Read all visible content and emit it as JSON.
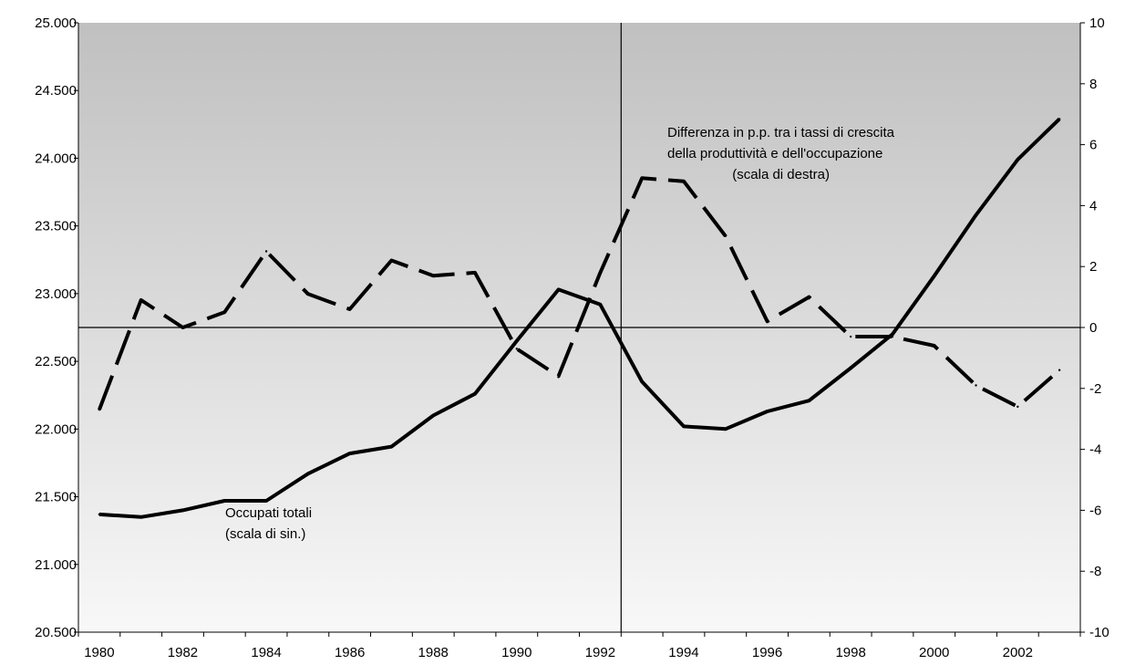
{
  "chart_data": {
    "type": "line",
    "title": "",
    "xlabel": "",
    "ylabel": "",
    "x": [
      1980,
      1981,
      1982,
      1983,
      1984,
      1985,
      1986,
      1987,
      1988,
      1989,
      1990,
      1991,
      1992,
      1993,
      1994,
      1995,
      1996,
      1997,
      1998,
      1999,
      2000,
      2001,
      2002,
      2003
    ],
    "x_tick_labels": [
      "1980",
      "1982",
      "1984",
      "1986",
      "1988",
      "1990",
      "1992",
      "1994",
      "1996",
      "1998",
      "2000",
      "2002"
    ],
    "ylim_left": [
      20500,
      25000
    ],
    "ylim_right": [
      -10,
      10
    ],
    "y_left_tick_labels": [
      "20.500",
      "21.000",
      "21.500",
      "22.000",
      "22.500",
      "23.000",
      "23.500",
      "24.000",
      "24.500",
      "25.000"
    ],
    "y_right_tick_labels": [
      "-10",
      "-8",
      "-6",
      "-4",
      "-2",
      "0",
      "2",
      "4",
      "6",
      "8",
      "10"
    ],
    "grid": false,
    "reference_lines": {
      "horizontal_right_axis_value": 0,
      "vertical_between_years": [
        1992,
        1993
      ]
    },
    "series": [
      {
        "axis": "left",
        "style": "solid",
        "color": "#000000",
        "values": [
          21370,
          21350,
          21400,
          21470,
          21470,
          21670,
          21820,
          21870,
          22100,
          22260,
          22650,
          23030,
          22920,
          22350,
          22020,
          22000,
          22130,
          22210,
          22450,
          22700,
          23130,
          23580,
          23990,
          24290
        ]
      },
      {
        "axis": "right",
        "style": "dashed",
        "color": "#000000",
        "values": [
          -2.7,
          0.9,
          0.0,
          0.5,
          2.5,
          1.1,
          0.6,
          2.2,
          1.7,
          1.8,
          -0.7,
          -1.6,
          1.8,
          4.9,
          4.8,
          3.0,
          0.2,
          1.0,
          -0.3,
          -0.3,
          -0.6,
          -1.9,
          -2.6,
          -1.4
        ]
      }
    ],
    "annotations": {
      "dashed_series": [
        "Differenza in p.p. tra i tassi di crescita",
        "della produttività e dell'occupazione",
        "(scala di destra)"
      ],
      "solid_series": [
        "Occupati totali",
        "(scala di sin.)"
      ]
    },
    "colors": {
      "plot_bg_top": "#c0c0c0",
      "plot_bg_bottom": "#f8f8f8"
    }
  }
}
